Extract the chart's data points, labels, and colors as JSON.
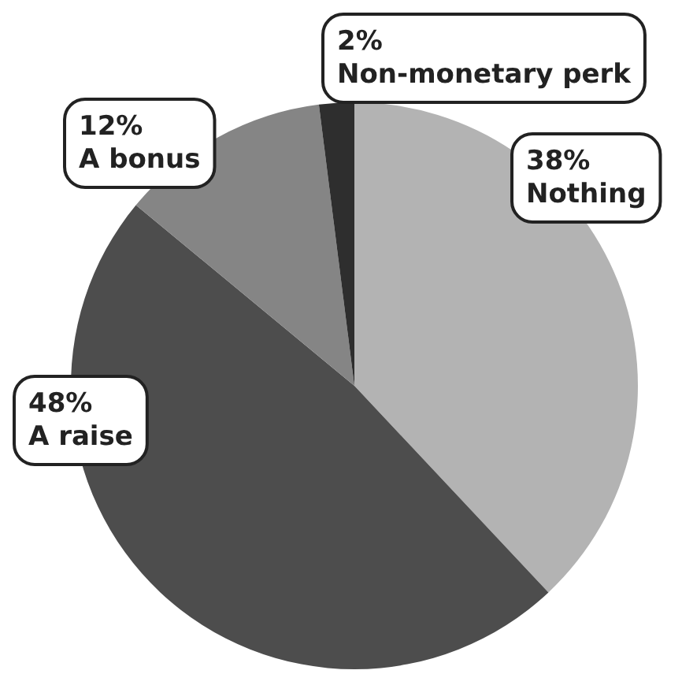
{
  "chart_data": {
    "type": "pie",
    "categories": [
      "Nothing",
      "A raise",
      "A bonus",
      "Non-monetary perk"
    ],
    "values": [
      38,
      48,
      12,
      2
    ],
    "value_labels": [
      "38%",
      "48%",
      "12%",
      "2%"
    ],
    "colors": [
      "#b3b3b3",
      "#4d4d4d",
      "#858585",
      "#2e2e2e"
    ],
    "legend": false
  }
}
